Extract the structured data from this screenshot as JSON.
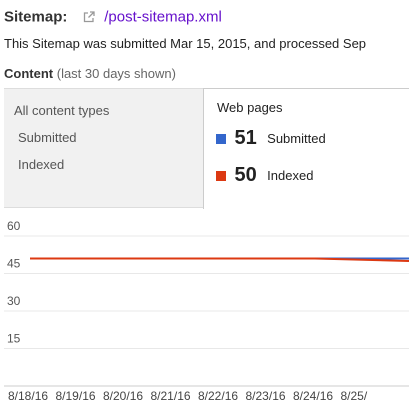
{
  "header": {
    "label": "Sitemap:",
    "link_text": "/post-sitemap.xml",
    "submitted_text": "This Sitemap was submitted Mar 15, 2015, and processed Sep"
  },
  "content": {
    "label": "Content",
    "hint": "(last 30 days shown)"
  },
  "filters": [
    "All content types",
    "Submitted",
    "Indexed"
  ],
  "tab": {
    "title": "Web pages",
    "metrics": [
      {
        "value": "51",
        "label": "Submitted",
        "color": "#3366cc"
      },
      {
        "value": "50",
        "label": "Indexed",
        "color": "#dc3912"
      }
    ]
  },
  "chart_data": {
    "type": "line",
    "yticks": [
      60,
      45,
      30,
      15
    ],
    "ylim": [
      0,
      60
    ],
    "categories": [
      "8/18/16",
      "8/19/16",
      "8/20/16",
      "8/21/16",
      "8/22/16",
      "8/23/16",
      "8/24/16",
      "8/25/"
    ],
    "series": [
      {
        "name": "Submitted",
        "color": "#3366cc",
        "values": [
          51,
          51,
          51,
          51,
          51,
          51,
          51,
          51
        ]
      },
      {
        "name": "Indexed",
        "color": "#dc3912",
        "values": [
          51,
          51,
          51,
          51,
          51,
          51,
          51,
          50
        ]
      }
    ]
  }
}
